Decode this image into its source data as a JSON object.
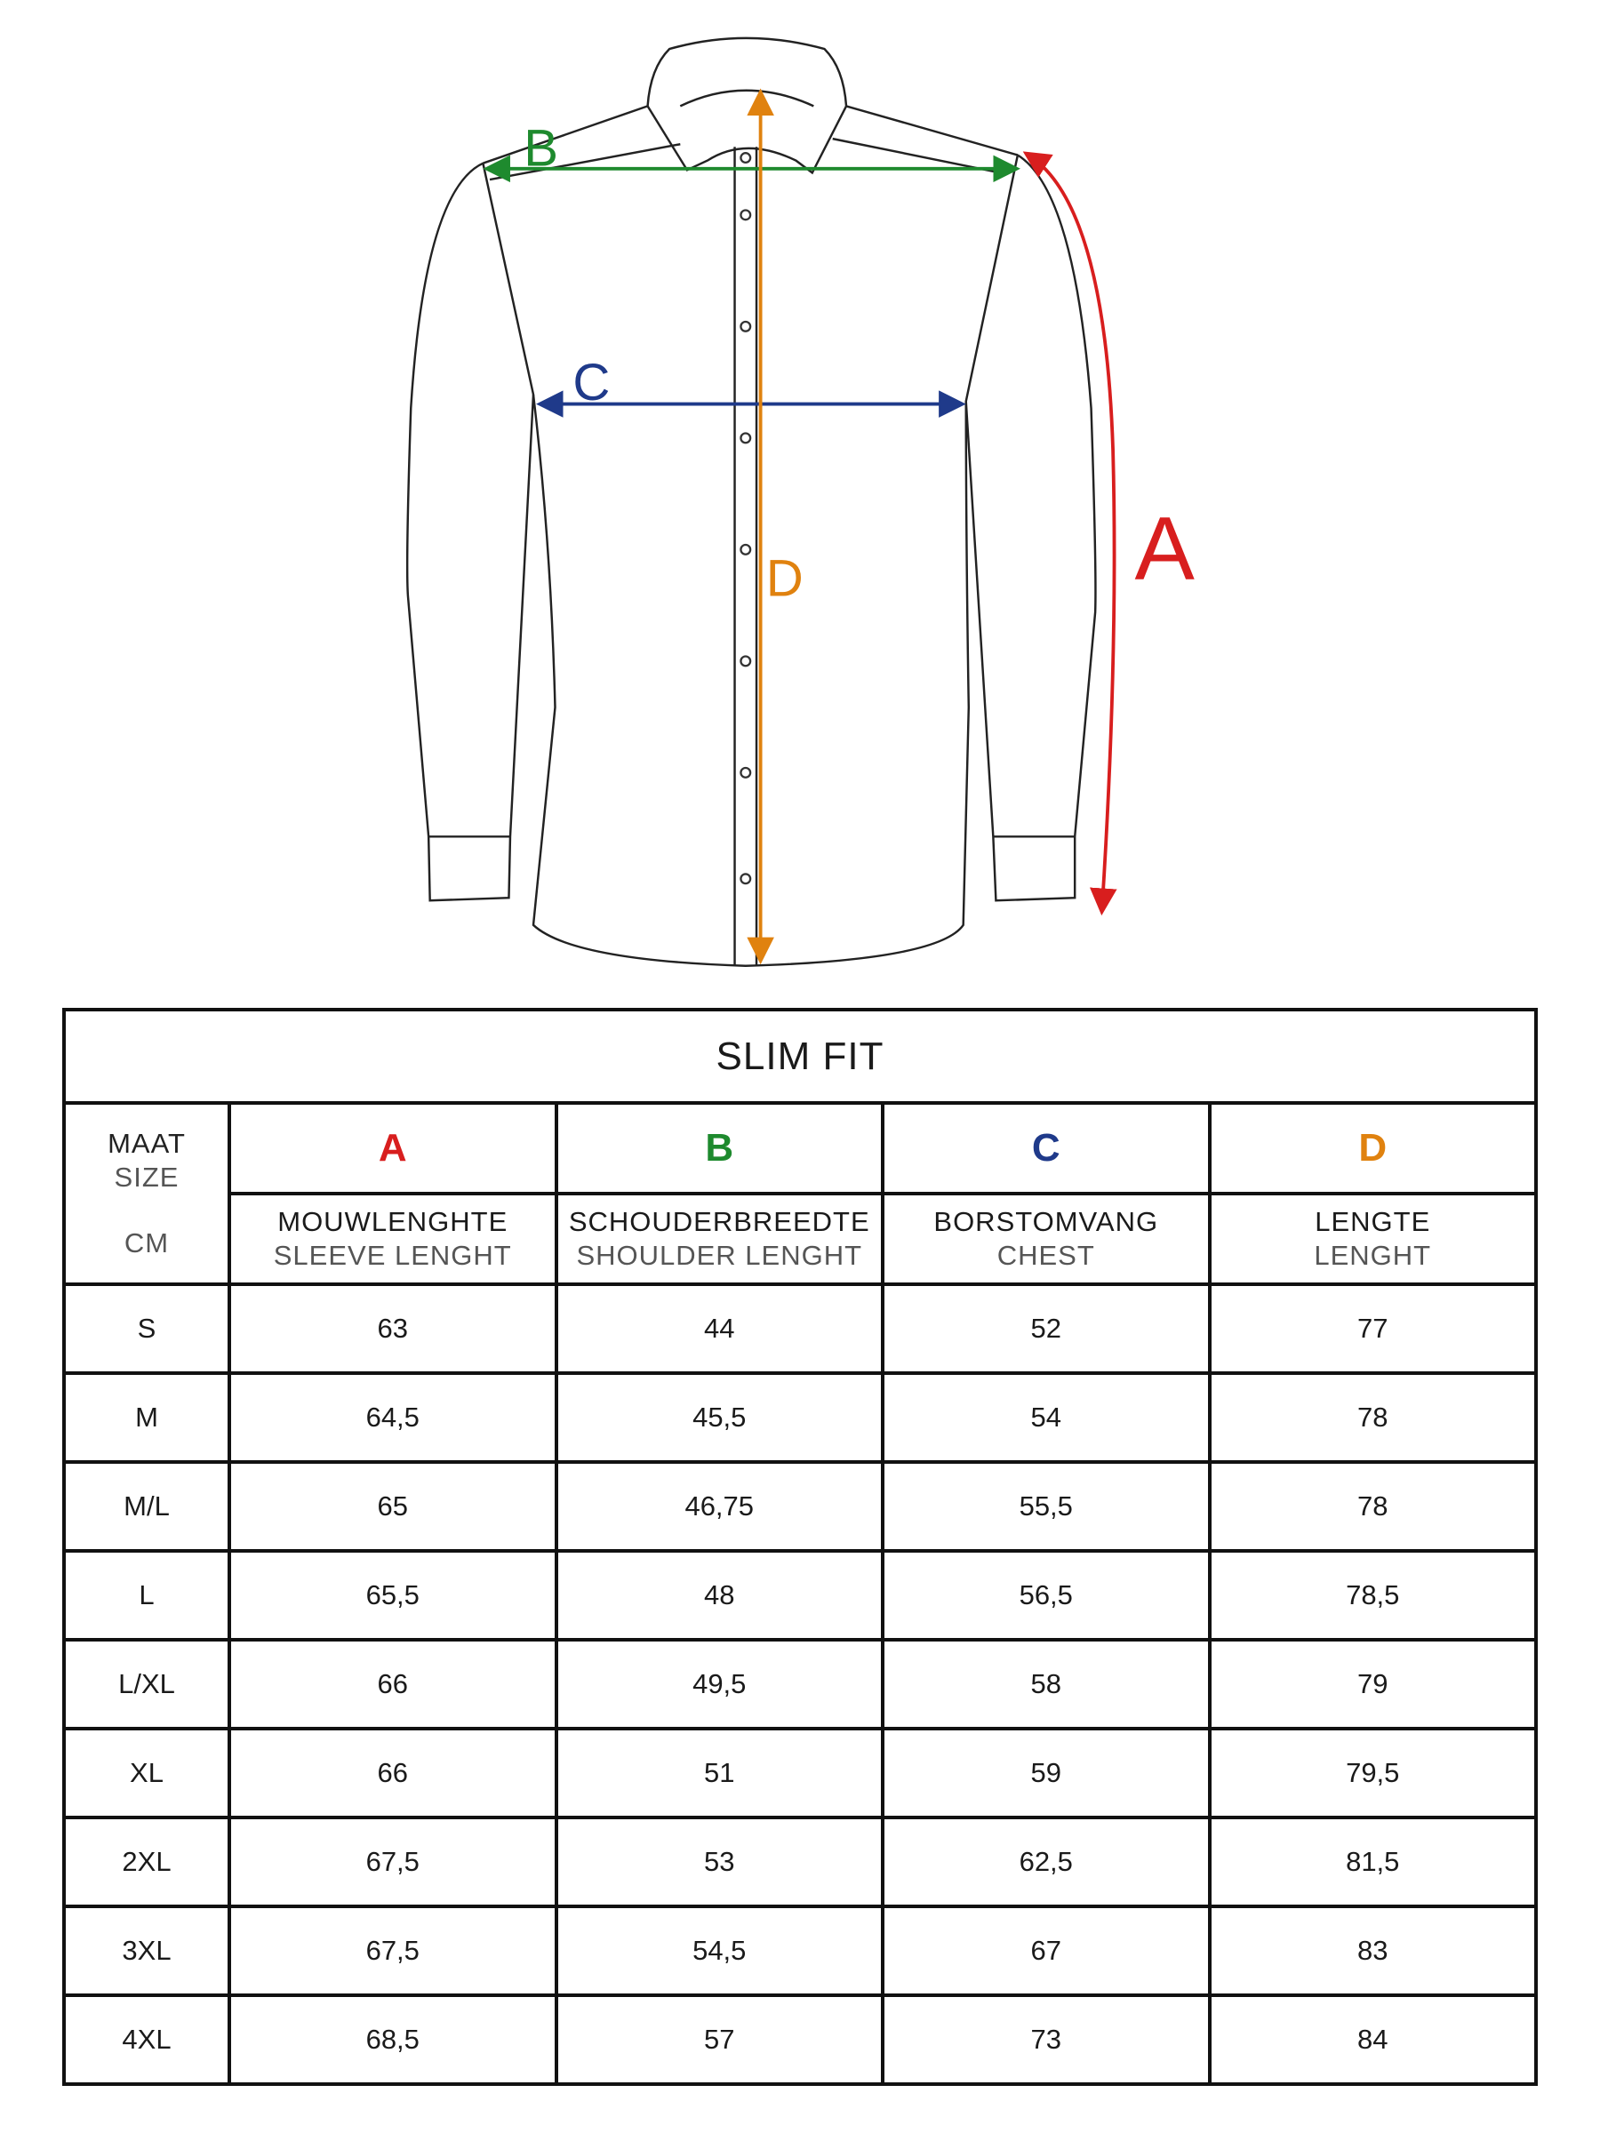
{
  "diagram": {
    "labels": {
      "A": "A",
      "B": "B",
      "C": "C",
      "D": "D"
    },
    "colors": {
      "A": "#d81e1e",
      "B": "#1e8a2e",
      "C": "#1f3a8a",
      "D": "#e0820f"
    }
  },
  "table": {
    "title": "SLIM FIT",
    "size_header": {
      "line1": "MAAT",
      "line2": "SIZE",
      "unit": "CM"
    },
    "columns": [
      {
        "letter": "A",
        "nl": "MOUWLENGHTE",
        "en": "SLEEVE LENGHT",
        "color": "#d81e1e"
      },
      {
        "letter": "B",
        "nl": "SCHOUDERBREEDTE",
        "en": "SHOULDER LENGHT",
        "color": "#1e8a2e"
      },
      {
        "letter": "C",
        "nl": "BORSTOMVANG",
        "en": "CHEST",
        "color": "#1f3a8a"
      },
      {
        "letter": "D",
        "nl": "LENGTE",
        "en": "LENGHT",
        "color": "#e0820f"
      }
    ],
    "rows": [
      {
        "size": "S",
        "values": [
          "63",
          "44",
          "52",
          "77"
        ]
      },
      {
        "size": "M",
        "values": [
          "64,5",
          "45,5",
          "54",
          "78"
        ]
      },
      {
        "size": "M/L",
        "values": [
          "65",
          "46,75",
          "55,5",
          "78"
        ]
      },
      {
        "size": "L",
        "values": [
          "65,5",
          "48",
          "56,5",
          "78,5"
        ]
      },
      {
        "size": "L/XL",
        "values": [
          "66",
          "49,5",
          "58",
          "79"
        ]
      },
      {
        "size": "XL",
        "values": [
          "66",
          "51",
          "59",
          "79,5"
        ]
      },
      {
        "size": "2XL",
        "values": [
          "67,5",
          "53",
          "62,5",
          "81,5"
        ]
      },
      {
        "size": "3XL",
        "values": [
          "67,5",
          "54,5",
          "67",
          "83"
        ]
      },
      {
        "size": "4XL",
        "values": [
          "68,5",
          "57",
          "73",
          "84"
        ]
      }
    ]
  }
}
